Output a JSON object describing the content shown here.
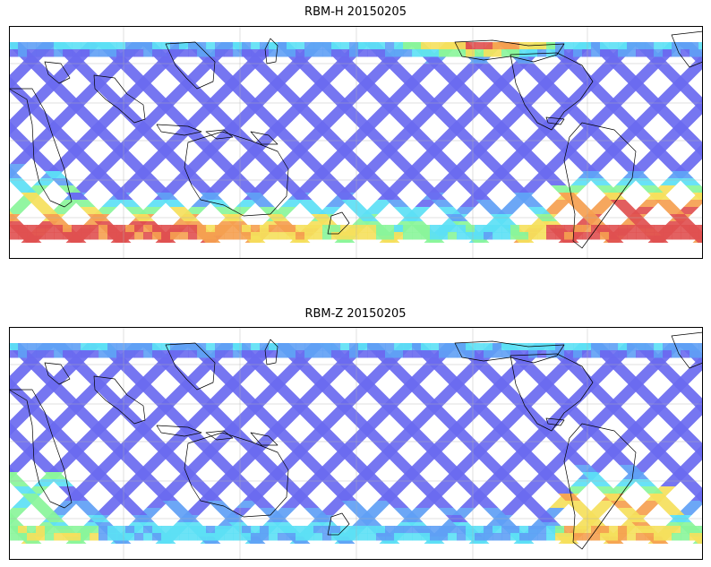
{
  "panels": [
    {
      "id": "top",
      "title": "RBM-H 20150205",
      "variable": "RBM-H",
      "date": "20150205",
      "colormap": "jet",
      "hot_regions": [
        "southern-ocean-west",
        "southern-ocean-east",
        "north-pacific-arctic"
      ]
    },
    {
      "id": "bottom",
      "title": "RBM-Z 20150205",
      "variable": "RBM-Z",
      "date": "20150205",
      "colormap": "jet",
      "hot_regions": [
        "south-atlantic-patagonia"
      ]
    }
  ],
  "map": {
    "projection": "cylindrical",
    "gridlines": true,
    "coastlines": true,
    "swath_pattern": "diagonal-orbit-tracks"
  },
  "colors": {
    "base_swath": "#6a6af0",
    "cool": "#5fa0f5",
    "cyan": "#5ce0f5",
    "green": "#8af59a",
    "yellow": "#f5e05c",
    "orange": "#f5a050",
    "red": "#e05050"
  }
}
